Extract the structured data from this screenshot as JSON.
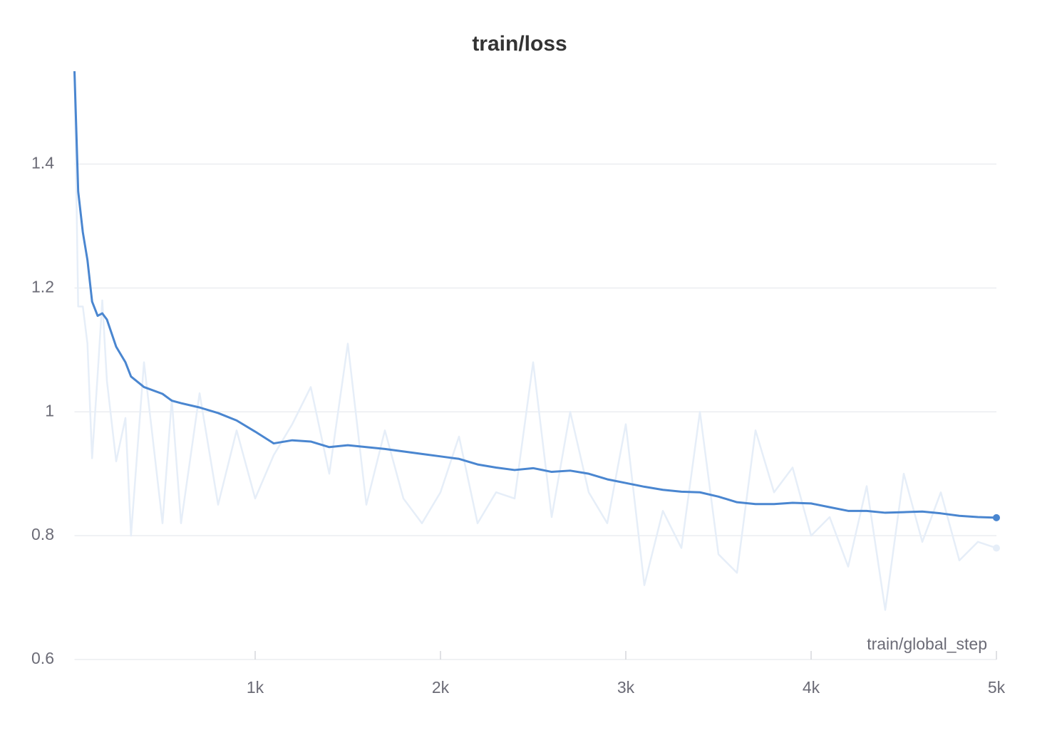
{
  "chart_data": {
    "type": "line",
    "title": "train/loss",
    "x_label": "train/global_step",
    "x": [
      25,
      45,
      70,
      95,
      120,
      150,
      175,
      200,
      250,
      300,
      330,
      400,
      500,
      550,
      600,
      700,
      800,
      900,
      1000,
      1100,
      1200,
      1300,
      1400,
      1500,
      1600,
      1700,
      1800,
      1900,
      2000,
      2100,
      2200,
      2300,
      2400,
      2500,
      2600,
      2700,
      2800,
      2900,
      3000,
      3100,
      3200,
      3300,
      3400,
      3500,
      3600,
      3700,
      3800,
      3900,
      4000,
      4100,
      4200,
      4300,
      4400,
      4500,
      4600,
      4700,
      4800,
      4900,
      5000
    ],
    "series": [
      {
        "color": "#e6eef8",
        "values": [
          1.55,
          1.17,
          1.17,
          1.11,
          0.925,
          1.06,
          1.18,
          1.05,
          0.92,
          0.99,
          0.8,
          1.08,
          0.82,
          1.02,
          0.82,
          1.03,
          0.85,
          0.97,
          0.86,
          0.93,
          0.98,
          1.04,
          0.9,
          1.11,
          0.85,
          0.97,
          0.86,
          0.82,
          0.87,
          0.96,
          0.82,
          0.87,
          0.86,
          1.08,
          0.83,
          1.0,
          0.87,
          0.82,
          0.98,
          0.72,
          0.84,
          0.78,
          1.0,
          0.77,
          0.74,
          0.97,
          0.87,
          0.91,
          0.8,
          0.83,
          0.75,
          0.88,
          0.68,
          0.9,
          0.79,
          0.87,
          0.76,
          0.79,
          0.78
        ]
      },
      {
        "color": "#4a86d0",
        "values": [
          1.55,
          1.356,
          1.29,
          1.245,
          1.178,
          1.155,
          1.159,
          1.149,
          1.105,
          1.08,
          1.057,
          1.04,
          1.029,
          1.018,
          1.014,
          1.007,
          0.998,
          0.986,
          0.968,
          0.949,
          0.954,
          0.952,
          0.943,
          0.946,
          0.943,
          0.94,
          0.936,
          0.932,
          0.928,
          0.924,
          0.915,
          0.91,
          0.906,
          0.909,
          0.903,
          0.905,
          0.9,
          0.891,
          0.885,
          0.879,
          0.874,
          0.871,
          0.87,
          0.863,
          0.854,
          0.851,
          0.851,
          0.853,
          0.852,
          0.846,
          0.84,
          0.84,
          0.837,
          0.838,
          0.839,
          0.836,
          0.832,
          0.83,
          0.829
        ]
      }
    ],
    "xlim": [
      25,
      5000
    ],
    "xticks": [
      {
        "value": 1000,
        "label": "1k"
      },
      {
        "value": 2000,
        "label": "2k"
      },
      {
        "value": 3000,
        "label": "3k"
      },
      {
        "value": 4000,
        "label": "4k"
      },
      {
        "value": 5000,
        "label": "5k"
      }
    ],
    "ylim": [
      0.6,
      1.55
    ],
    "yticks": [
      0.6,
      0.8,
      1,
      1.2,
      1.4
    ],
    "grid": true
  }
}
